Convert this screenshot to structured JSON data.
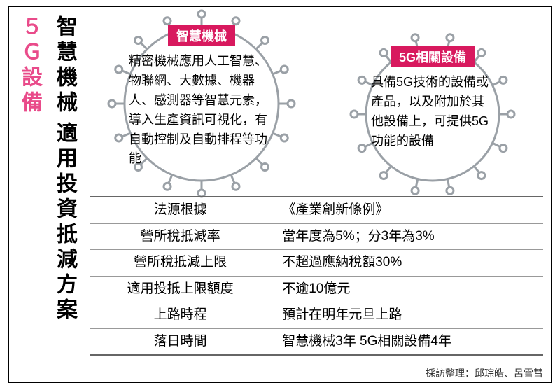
{
  "title": {
    "line1_red": "５Ｇ設備",
    "line1_black": "智慧機械",
    "line2_black": "適用投資抵減方案"
  },
  "gear_big": {
    "tag": "智慧機械",
    "desc": "精密機械應用人工智慧、物聯網、大數據、機器人、感測器等智慧元素，導入生產資訊可視化，有自動控制及自動排程等功能",
    "size": 270,
    "stroke": "#9aa0a6",
    "tag_bg": "#d8195e"
  },
  "gear_small": {
    "tag": "5G相關設備",
    "desc": "具備5G技術的設備或產品，以及附加於其他設備上，可提供5G功能的設備",
    "size": 240,
    "stroke": "#9aa0a6",
    "tag_bg": "#d8195e"
  },
  "table": {
    "rows": [
      {
        "l": "法源根據",
        "r": "《產業創新條例》"
      },
      {
        "l": "營所稅抵減率",
        "r": "當年度為5%；分3年為3%"
      },
      {
        "l": "營所稅抵減上限",
        "r": "不超過應納稅額30%"
      },
      {
        "l": "適用投抵上限額度",
        "r": "不逾10億元"
      },
      {
        "l": "上路時程",
        "r": "預計在明年元旦上路"
      },
      {
        "l": "落日時間",
        "r": "智慧機械3年 5G相關設備4年"
      }
    ]
  },
  "credit": "採訪整理：邱琮皓、呂雪彗"
}
